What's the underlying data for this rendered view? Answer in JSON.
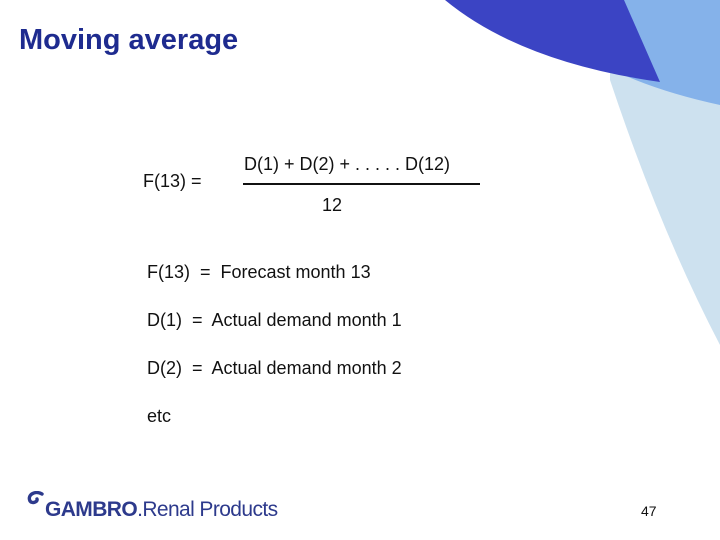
{
  "slide": {
    "title": "Moving average",
    "formula": {
      "lhs": "F(13) =",
      "numerator": "D(1) + D(2) + . . . . . D(12)",
      "denominator": "12"
    },
    "definitions": [
      "F(13)  =  Forecast month 13",
      "D(1)  =  Actual demand month 1",
      "D(2)  =  Actual demand month 2",
      "etc"
    ],
    "footer": {
      "logo_brand": "GAMBRO",
      "logo_tagline": "Renal Products",
      "page_number": "47"
    }
  },
  "colors": {
    "title": "#1e2b8f",
    "decor_dark_blue": "#3b44c4",
    "decor_mid_blue": "#85b2ea",
    "decor_light_blue": "#cde1ef",
    "logo": "#2d3a8c"
  }
}
